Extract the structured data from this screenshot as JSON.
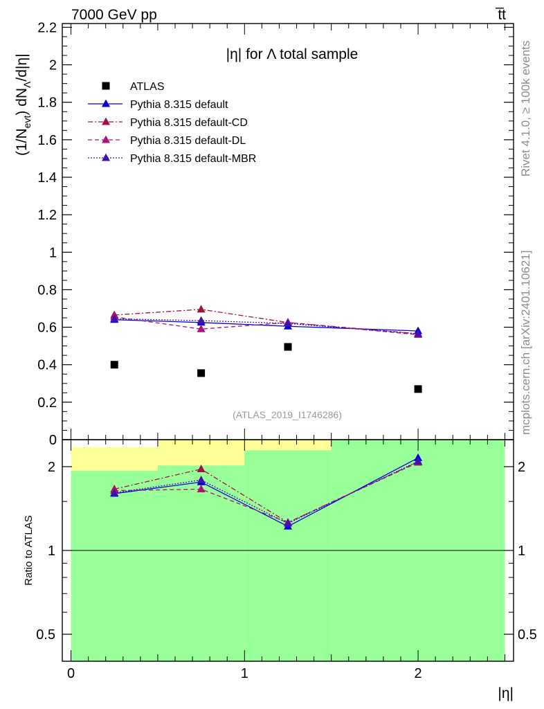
{
  "header": {
    "left": "7000 GeV pp",
    "right": "t̅t"
  },
  "side_labels": {
    "rivet": "Rivet 4.1.0, ≥ 100k events",
    "mcplots": "mcplots.cern.ch [arXiv:2401.10621]"
  },
  "chart_data": [
    {
      "panel": "main",
      "type": "scatter",
      "title": "|η| for Λ total sample",
      "watermark": "(ATLAS_2019_I1746286)",
      "xlabel": "|η|",
      "ylabel": "(1/N_evt) dN_Λ/d|η|",
      "xlim": [
        -0.05,
        2.55
      ],
      "ylim": [
        0,
        2.22
      ],
      "yticks": [
        0,
        0.2,
        0.4,
        0.6,
        0.8,
        1,
        1.2,
        1.4,
        1.6,
        1.8,
        2,
        2.2
      ],
      "ytick_labels": [
        "0",
        "0.2",
        "0.4",
        "0.6",
        "0.8",
        "1",
        "1.2",
        "1.4",
        "1.6",
        "1.8",
        "2",
        "2.2"
      ],
      "x": [
        0.25,
        0.75,
        1.25,
        2.0
      ],
      "legend_position": "top-left",
      "series": [
        {
          "name": "ATLAS",
          "marker": "square",
          "color": "#000000",
          "dash": "none",
          "values": [
            0.4,
            0.355,
            0.495,
            0.27
          ]
        },
        {
          "name": "Pythia 8.315 default",
          "marker": "triangle",
          "color": "#0000dd",
          "dash": "solid",
          "values": [
            0.64,
            0.625,
            0.605,
            0.58
          ]
        },
        {
          "name": "Pythia 8.315 default-CD",
          "marker": "triangle",
          "color": "#a01040",
          "dash": "dashdot",
          "values": [
            0.665,
            0.695,
            0.625,
            0.565
          ]
        },
        {
          "name": "Pythia 8.315 default-DL",
          "marker": "triangle",
          "color": "#b0107a",
          "dash": "dashed",
          "values": [
            0.655,
            0.59,
            0.625,
            0.56
          ]
        },
        {
          "name": "Pythia 8.315 default-MBR",
          "marker": "triangle",
          "color": "#4010b0",
          "dash": "dotted",
          "values": [
            0.645,
            0.635,
            0.62,
            0.565
          ]
        }
      ]
    },
    {
      "panel": "ratio",
      "type": "line",
      "ylabel": "Ratio to ATLAS",
      "scale": "log",
      "ylim": [
        0.4,
        2.5
      ],
      "yticks": [
        0.5,
        1,
        2
      ],
      "ytick_labels": [
        "0.5",
        "1",
        "2"
      ],
      "xticks": [
        0,
        1,
        2
      ],
      "xtick_labels": [
        "0",
        "1",
        "2"
      ],
      "x": [
        0.25,
        0.75,
        1.25,
        2.0
      ],
      "bands": [
        {
          "x0": 0.0,
          "x1": 0.5,
          "yellow": [
            0.46,
            2.35
          ],
          "green": [
            0.4,
            1.93
          ]
        },
        {
          "x0": 0.5,
          "x1": 1.0,
          "yellow": [
            0.4,
            2.5
          ],
          "green": [
            0.4,
            2.02
          ]
        },
        {
          "x0": 1.0,
          "x1": 1.5,
          "yellow": [
            0.4,
            2.5
          ],
          "green": [
            0.4,
            2.29
          ]
        },
        {
          "x0": 1.5,
          "x1": 2.5,
          "yellow": [
            0.4,
            2.5
          ],
          "green": [
            0.4,
            2.6
          ]
        }
      ],
      "series": [
        {
          "name": "Pythia 8.315 default",
          "color": "#0000dd",
          "dash": "solid",
          "values": [
            1.6,
            1.76,
            1.22,
            2.15
          ]
        },
        {
          "name": "Pythia 8.315 default-CD",
          "color": "#a01040",
          "dash": "dashdot",
          "values": [
            1.66,
            1.96,
            1.26,
            2.08
          ]
        },
        {
          "name": "Pythia 8.315 default-DL",
          "color": "#b0107a",
          "dash": "dashed",
          "values": [
            1.64,
            1.66,
            1.26,
            2.07
          ]
        },
        {
          "name": "Pythia 8.315 default-MBR",
          "color": "#4010b0",
          "dash": "dotted",
          "values": [
            1.61,
            1.79,
            1.25,
            2.09
          ]
        }
      ]
    }
  ]
}
